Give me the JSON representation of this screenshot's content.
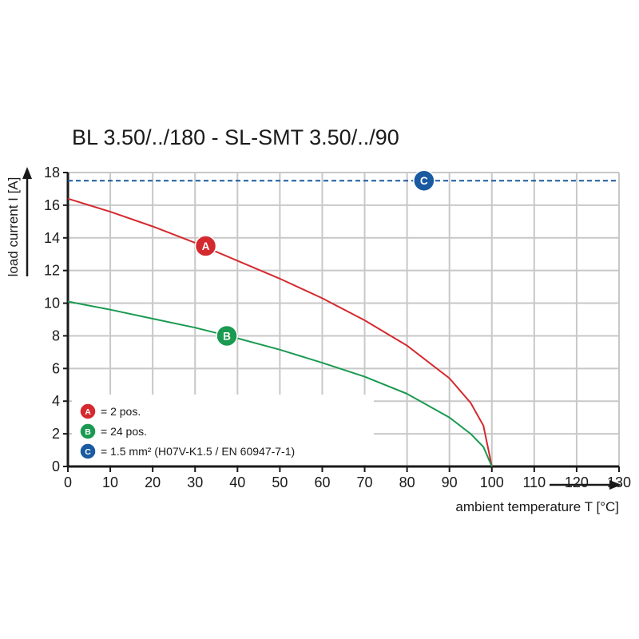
{
  "chart_data": {
    "type": "line",
    "title": "BL 3.50/../180 - SL-SMT 3.50/../90",
    "xlabel": "ambient temperature T [°C]",
    "ylabel": "load current I [A]",
    "xlim": [
      0,
      130
    ],
    "ylim": [
      0,
      18
    ],
    "xticks": [
      "0",
      "10",
      "20",
      "30",
      "40",
      "50",
      "60",
      "70",
      "80",
      "90",
      "100",
      "110",
      "120",
      "130"
    ],
    "yticks": [
      "0",
      "2",
      "4",
      "6",
      "8",
      "10",
      "12",
      "14",
      "16",
      "18"
    ],
    "grid": true,
    "legend_position": "bottom-left",
    "series": [
      {
        "id": "A",
        "marker": "A",
        "legend_label": "= 2 pos.",
        "color": "#d42a2f",
        "marker_at": {
          "x": 32.5,
          "y": 13.5
        },
        "x": [
          0,
          10,
          20,
          30,
          40,
          50,
          60,
          70,
          80,
          90,
          95,
          98,
          100
        ],
        "y": [
          16.4,
          15.6,
          14.7,
          13.7,
          12.6,
          11.5,
          10.3,
          8.95,
          7.4,
          5.4,
          3.9,
          2.5,
          0
        ]
      },
      {
        "id": "B",
        "marker": "B",
        "legend_label": "= 24 pos.",
        "color": "#1a9a50",
        "marker_at": {
          "x": 37.5,
          "y": 8.0
        },
        "x": [
          0,
          10,
          20,
          30,
          40,
          50,
          60,
          70,
          80,
          90,
          95,
          98,
          100
        ],
        "y": [
          10.1,
          9.6,
          9.05,
          8.5,
          7.85,
          7.15,
          6.35,
          5.5,
          4.45,
          3.0,
          2.0,
          1.2,
          0
        ]
      },
      {
        "id": "C",
        "marker": "C",
        "legend_label": "= 1.5 mm² (H07V-K1.5 / EN 60947-7-1)",
        "color": "#1a5aa0",
        "style": "dashed",
        "marker_at": {
          "x": 84,
          "y": 17.5
        },
        "x": [
          0,
          130
        ],
        "y": [
          17.5,
          17.5
        ]
      }
    ]
  },
  "colors": {
    "grid": "#c8c8c8",
    "axis": "#1a1a1a",
    "text": "#1a1a1a"
  }
}
